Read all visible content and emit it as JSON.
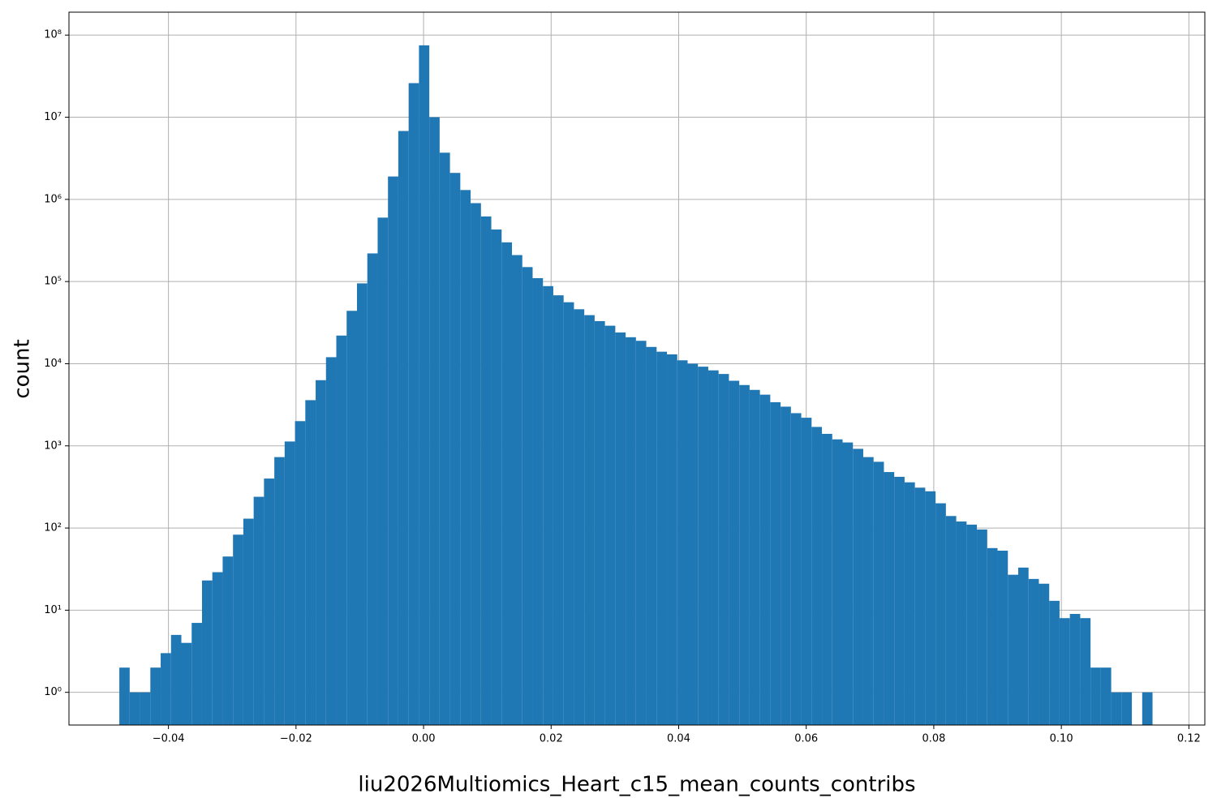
{
  "chart_data": {
    "type": "histogram",
    "x_label": "liu2026Multiomics_Heart_c15_mean_counts_contribs",
    "y_label": "count",
    "color": "#1f77b4",
    "yscale": "log",
    "grid": true,
    "bins": [
      -0.0477,
      -0.04608,
      -0.04446,
      -0.04284,
      -0.04122,
      -0.0396,
      -0.03798,
      -0.03636,
      -0.03474,
      -0.03312,
      -0.0315,
      -0.02988,
      -0.02826,
      -0.02664,
      -0.02502,
      -0.0234,
      -0.02178,
      -0.02016,
      -0.01854,
      -0.01692,
      -0.0153,
      -0.01368,
      -0.01206,
      -0.01044,
      -0.00882,
      -0.0072,
      -0.00558,
      -0.00396,
      -0.00234,
      -0.00072,
      0.0009,
      0.00252,
      0.00414,
      0.00576,
      0.00738,
      0.009,
      0.01062,
      0.01224,
      0.01386,
      0.01548,
      0.0171,
      0.01872,
      0.02034,
      0.02196,
      0.02358,
      0.0252,
      0.02682,
      0.02844,
      0.03006,
      0.03168,
      0.0333,
      0.03492,
      0.03654,
      0.03816,
      0.03978,
      0.0414,
      0.04302,
      0.04464,
      0.04626,
      0.04788,
      0.0495,
      0.05112,
      0.05274,
      0.05436,
      0.05598,
      0.0576,
      0.05922,
      0.06084,
      0.06246,
      0.06408,
      0.0657,
      0.06732,
      0.06894,
      0.07056,
      0.07218,
      0.0738,
      0.07542,
      0.07704,
      0.07866,
      0.08028,
      0.0819,
      0.08352,
      0.08514,
      0.08676,
      0.08838,
      0.09,
      0.09162,
      0.09324,
      0.09486,
      0.09648,
      0.0981,
      0.09972,
      0.10134,
      0.10296,
      0.10458,
      0.1062,
      0.10782,
      0.10944,
      0.11106,
      0.11268,
      0.1143
    ],
    "values": [
      2,
      1,
      1,
      2,
      3,
      5,
      4,
      7,
      23,
      29,
      45,
      83,
      130,
      240,
      400,
      730,
      1130,
      2000,
      3600,
      6300,
      12000,
      22000,
      44000,
      95000,
      220000,
      600000,
      1900000,
      6800000,
      26000000,
      75000000,
      10000000,
      3700000,
      2100000,
      1300000,
      900000,
      620000,
      430000,
      300000,
      210000,
      150000,
      110000,
      88000,
      68000,
      56000,
      46000,
      39000,
      33000,
      29000,
      24000,
      21000,
      19000,
      16000,
      14000,
      13000,
      11000,
      10000,
      9200,
      8300,
      7500,
      6200,
      5500,
      4800,
      4200,
      3400,
      3000,
      2500,
      2200,
      1700,
      1400,
      1200,
      1100,
      920,
      730,
      640,
      480,
      420,
      360,
      310,
      280,
      200,
      140,
      120,
      110,
      96,
      57,
      53,
      27,
      33,
      24,
      21,
      13,
      8,
      9,
      8,
      2,
      2,
      1,
      1,
      0,
      1
    ],
    "xlim": [
      -0.0556,
      0.1225
    ],
    "ylim": [
      0.4,
      190000000
    ],
    "xticks": [
      {
        "value": -0.04,
        "label": "−0.04"
      },
      {
        "value": -0.02,
        "label": "−0.02"
      },
      {
        "value": 0,
        "label": "0.00"
      },
      {
        "value": 0.02,
        "label": "0.02"
      },
      {
        "value": 0.04,
        "label": "0.04"
      },
      {
        "value": 0.06,
        "label": "0.06"
      },
      {
        "value": 0.08,
        "label": "0.08"
      },
      {
        "value": 0.1,
        "label": "0.10"
      },
      {
        "value": 0.12,
        "label": "0.12"
      }
    ],
    "yticks": [
      {
        "value": 1,
        "label": "10⁰"
      },
      {
        "value": 10,
        "label": "10¹"
      },
      {
        "value": 100,
        "label": "10²"
      },
      {
        "value": 1000,
        "label": "10³"
      },
      {
        "value": 10000,
        "label": "10⁴"
      },
      {
        "value": 100000,
        "label": "10⁵"
      },
      {
        "value": 1000000,
        "label": "10⁶"
      },
      {
        "value": 10000000,
        "label": "10⁷"
      },
      {
        "value": 100000000,
        "label": "10⁸"
      }
    ]
  }
}
